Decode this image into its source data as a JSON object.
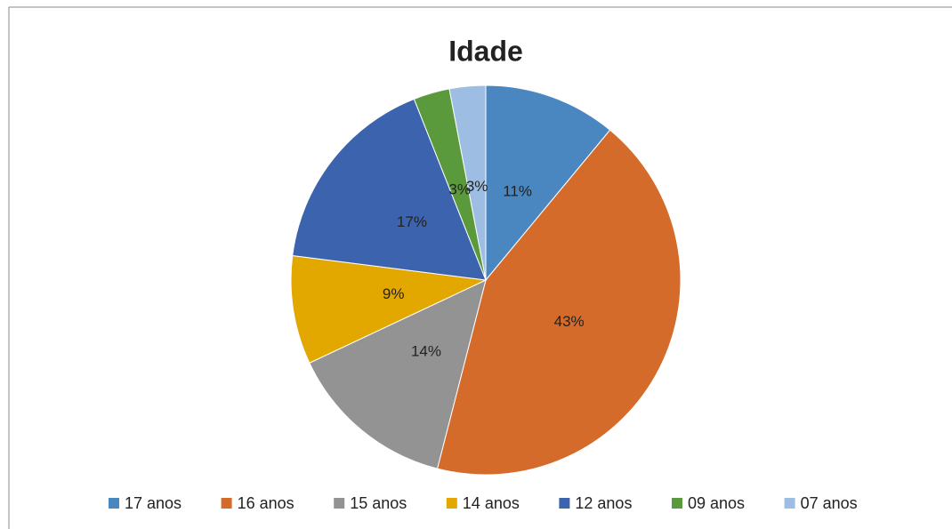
{
  "chart_data": {
    "type": "pie",
    "title": "Idade",
    "categories": [
      "17 anos",
      "16 anos",
      "15 anos",
      "14 anos",
      "12 anos",
      "09 anos",
      "07 anos"
    ],
    "values": [
      11,
      43,
      14,
      9,
      17,
      3,
      3
    ],
    "value_labels": [
      "11%",
      "43%",
      "14%",
      "9%",
      "17%",
      "3%",
      "3%"
    ],
    "colors": [
      "#4a86bf",
      "#d46b2a",
      "#939393",
      "#e2a800",
      "#3b63ae",
      "#5b9a3c",
      "#9dbde3"
    ],
    "legend": "bottom"
  }
}
